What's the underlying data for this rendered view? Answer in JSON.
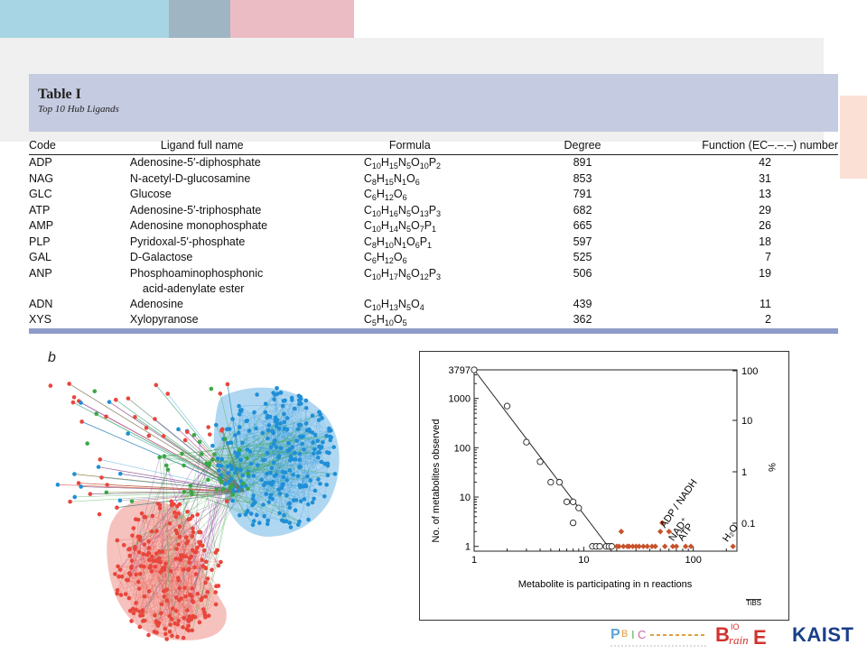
{
  "table": {
    "title": "Table I",
    "subtitle": "Top 10 Hub Ligands",
    "headers": [
      "Code",
      "Ligand full name",
      "Formula",
      "Degree",
      "Function (EC–.–.–) number"
    ],
    "rows": [
      {
        "code": "ADP",
        "name": "Adenosine-5′-diphosphate",
        "name2": "",
        "formula": [
          [
            "C",
            "10"
          ],
          [
            "H",
            "15"
          ],
          [
            "N",
            "5"
          ],
          [
            "O",
            "10"
          ],
          [
            "P",
            "2"
          ]
        ],
        "degree": "891",
        "function": "42"
      },
      {
        "code": "NAG",
        "name": "N-acetyl-D-glucosamine",
        "name2": "",
        "formula": [
          [
            "C",
            "8"
          ],
          [
            "H",
            "15"
          ],
          [
            "N",
            "1"
          ],
          [
            "O",
            "6"
          ]
        ],
        "degree": "853",
        "function": "31"
      },
      {
        "code": "GLC",
        "name": "Glucose",
        "name2": "",
        "formula": [
          [
            "C",
            "6"
          ],
          [
            "H",
            "12"
          ],
          [
            "O",
            "6"
          ]
        ],
        "degree": "791",
        "function": "13"
      },
      {
        "code": "ATP",
        "name": "Adenosine-5′-triphosphate",
        "name2": "",
        "formula": [
          [
            "C",
            "10"
          ],
          [
            "H",
            "16"
          ],
          [
            "N",
            "5"
          ],
          [
            "O",
            "13"
          ],
          [
            "P",
            "3"
          ]
        ],
        "degree": "682",
        "function": "29"
      },
      {
        "code": "AMP",
        "name": "Adenosine monophosphate",
        "name2": "",
        "formula": [
          [
            "C",
            "10"
          ],
          [
            "H",
            "14"
          ],
          [
            "N",
            "5"
          ],
          [
            "O",
            "7"
          ],
          [
            "P",
            "1"
          ]
        ],
        "degree": "665",
        "function": "26"
      },
      {
        "code": "PLP",
        "name": "Pyridoxal-5′-phosphate",
        "name2": "",
        "formula": [
          [
            "C",
            "8"
          ],
          [
            "H",
            "10"
          ],
          [
            "N",
            "1"
          ],
          [
            "O",
            "6"
          ],
          [
            "P",
            "1"
          ]
        ],
        "degree": "597",
        "function": "18"
      },
      {
        "code": "GAL",
        "name": "D-Galactose",
        "name2": "",
        "formula": [
          [
            "C",
            "6"
          ],
          [
            "H",
            "12"
          ],
          [
            "O",
            "6"
          ]
        ],
        "degree": "525",
        "function": "7"
      },
      {
        "code": "ANP",
        "name": "Phosphoaminophosphonic",
        "name2": "acid-adenylate ester",
        "formula": [
          [
            "C",
            "10"
          ],
          [
            "H",
            "17"
          ],
          [
            "N",
            "6"
          ],
          [
            "O",
            "12"
          ],
          [
            "P",
            "3"
          ]
        ],
        "degree": "506",
        "function": "19"
      },
      {
        "code": "ADN",
        "name": "Adenosine",
        "name2": "",
        "formula": [
          [
            "C",
            "10"
          ],
          [
            "H",
            "13"
          ],
          [
            "N",
            "5"
          ],
          [
            "O",
            "4"
          ]
        ],
        "degree": "439",
        "function": "11"
      },
      {
        "code": "XYS",
        "name": "Xylopyranose",
        "name2": "",
        "formula": [
          [
            "C",
            "5"
          ],
          [
            "H",
            "10"
          ],
          [
            "O",
            "5"
          ]
        ],
        "degree": "362",
        "function": "2"
      }
    ]
  },
  "panel_label": "b",
  "network": {
    "colors": {
      "red": "#e8463c",
      "blue": "#1f8fd6",
      "green": "#3aa845",
      "purple": "#8e3fa0"
    }
  },
  "chart_data": {
    "type": "scatter",
    "xlabel": "Metabolite is participating in n reactions",
    "ylabel": "No. of metabolites observed",
    "y2label": "%",
    "x_scale": "log",
    "y_scale": "log",
    "xlim": [
      1,
      250
    ],
    "ylim": [
      0.8,
      3797
    ],
    "x_ticks": [
      1,
      10,
      100
    ],
    "y_ticks": [
      1,
      10,
      100,
      1000,
      3797
    ],
    "y2_ticks": [
      "100",
      "10",
      "1",
      "0.1"
    ],
    "grid": false,
    "corner_label": "TiBS",
    "fit_line": {
      "from": [
        1,
        3797
      ],
      "to": [
        18,
        0.8
      ]
    },
    "series": [
      {
        "marker": "open-circle",
        "points": [
          [
            1,
            3797
          ],
          [
            2,
            700
          ],
          [
            3,
            130
          ],
          [
            4,
            52
          ],
          [
            5,
            20
          ],
          [
            6,
            20
          ],
          [
            7,
            8
          ],
          [
            8,
            3
          ],
          [
            8,
            8
          ],
          [
            9,
            6
          ],
          [
            12,
            1
          ],
          [
            13,
            1
          ],
          [
            14,
            1
          ],
          [
            16,
            1
          ],
          [
            17,
            1
          ],
          [
            18,
            1
          ]
        ]
      },
      {
        "marker": "filled-diamond",
        "color": "#c8522a",
        "points": [
          [
            20,
            1
          ],
          [
            21,
            1
          ],
          [
            22,
            2
          ],
          [
            23,
            1
          ],
          [
            25,
            1
          ],
          [
            26,
            1
          ],
          [
            28,
            1
          ],
          [
            30,
            1
          ],
          [
            32,
            1
          ],
          [
            35,
            1
          ],
          [
            38,
            1
          ],
          [
            42,
            1
          ],
          [
            45,
            1
          ],
          [
            50,
            2
          ],
          [
            52,
            3
          ],
          [
            55,
            1
          ],
          [
            60,
            2
          ],
          [
            65,
            1
          ],
          [
            70,
            1
          ],
          [
            85,
            1
          ],
          [
            95,
            1
          ],
          [
            230,
            1
          ]
        ]
      }
    ],
    "annotations": [
      "ADP / NADH",
      "NAD⁺",
      "ATP",
      "H₂O"
    ]
  },
  "logos": {
    "kaist": "KAIST",
    "bio_brain": "BIo BrainE"
  }
}
